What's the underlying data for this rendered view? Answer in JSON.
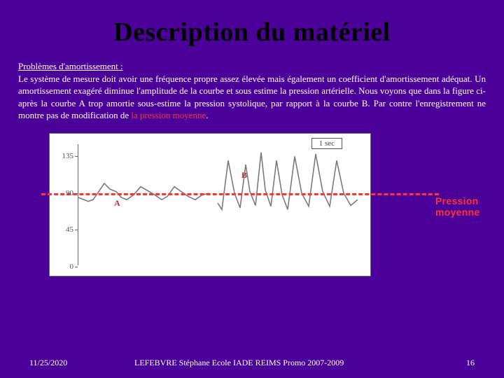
{
  "title": "Description du matériel",
  "para": {
    "lead": "Problèmes d'amortissement :",
    "text": "Le système de mesure doit avoir une fréquence propre assez élevée mais également un coefficient d'amortissement adéquat. Un amortissement exagéré diminue l'amplitude de la courbe et sous estime la pression artérielle. Nous voyons que dans la figure ci-après la courbe A trop amortie sous-estime la pression systolique, par rapport à la courbe B. Par contre l'enregistrement ne montre pas de modification de ",
    "highlight": "la pression moyenne",
    "tail": "."
  },
  "chart": {
    "type": "line",
    "background_color": "#ffffff",
    "border_color": "#6a6a6a",
    "axis_color": "#666666",
    "ytick_color": "#555555",
    "ytick_fontsize": 11,
    "ylim": [
      0,
      150
    ],
    "yticks": [
      0,
      45,
      90,
      135
    ],
    "sec_label": "1 sec",
    "label_A": "A",
    "label_B": "B",
    "curve_label_color": "#c02a2a",
    "line_color": "#7a7a7a",
    "line_width": 1.6,
    "mean_line_color": "#ff3333",
    "mean_value": 90,
    "seriesA_x": [
      0,
      15,
      22,
      30,
      38,
      46,
      55,
      62,
      70,
      80,
      90,
      100,
      110,
      120,
      128,
      138,
      148,
      158,
      168,
      178,
      188
    ],
    "seriesA_y": [
      85,
      80,
      82,
      92,
      102,
      95,
      92,
      85,
      82,
      88,
      98,
      93,
      88,
      82,
      86,
      98,
      92,
      86,
      82,
      88,
      90
    ],
    "seriesB_x": [
      200,
      206,
      215,
      224,
      232,
      240,
      246,
      254,
      262,
      268,
      276,
      284,
      292,
      300,
      310,
      320,
      330,
      340,
      350,
      360,
      370,
      380,
      390,
      400
    ],
    "seriesB_y": [
      78,
      70,
      130,
      90,
      72,
      125,
      92,
      75,
      140,
      94,
      74,
      130,
      88,
      70,
      135,
      90,
      74,
      138,
      92,
      74,
      130,
      90,
      75,
      82
    ]
  },
  "annotation_label": "Pression moyenne",
  "footer": {
    "date": "11/25/2020",
    "author": "LEFEBVRE Stéphane Ecole IADE REIMS Promo 2007-2009",
    "page": "16"
  },
  "colors": {
    "slide_bg": "#4b0099",
    "title": "#000000",
    "body_text": "#ffffff",
    "highlight": "#ff3333"
  }
}
